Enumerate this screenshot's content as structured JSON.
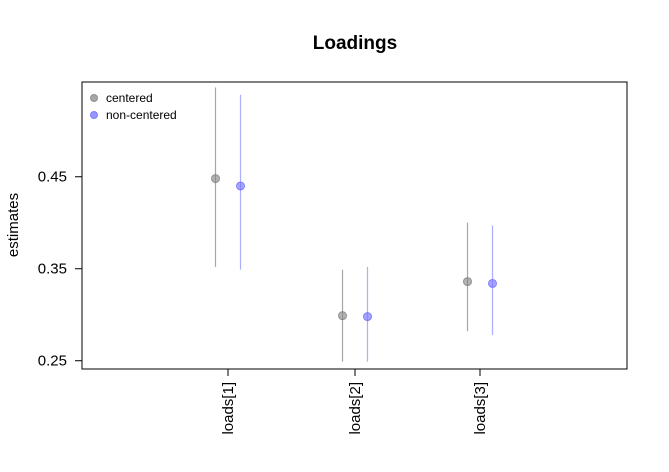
{
  "chart_data": {
    "type": "scatter",
    "title": "Loadings",
    "xlabel": "",
    "ylabel": "estimates",
    "categories": [
      "loads[1]",
      "loads[2]",
      "loads[3]"
    ],
    "ylim": [
      0.241,
      0.553
    ],
    "yticks": [
      0.25,
      0.35,
      0.45
    ],
    "ytick_labels": [
      "0.25",
      "0.35",
      "0.45"
    ],
    "legend_position": "top-left",
    "grid": false,
    "series": [
      {
        "name": "centered",
        "color": "#808080",
        "estimates": [
          0.448,
          0.299,
          0.336
        ],
        "lower": [
          0.352,
          0.249,
          0.282
        ],
        "upper": [
          0.547,
          0.349,
          0.4
        ]
      },
      {
        "name": "non-centered",
        "color": "#6b6bff",
        "estimates": [
          0.44,
          0.298,
          0.334
        ],
        "lower": [
          0.349,
          0.249,
          0.278
        ],
        "upper": [
          0.539,
          0.352,
          0.397
        ]
      }
    ]
  }
}
